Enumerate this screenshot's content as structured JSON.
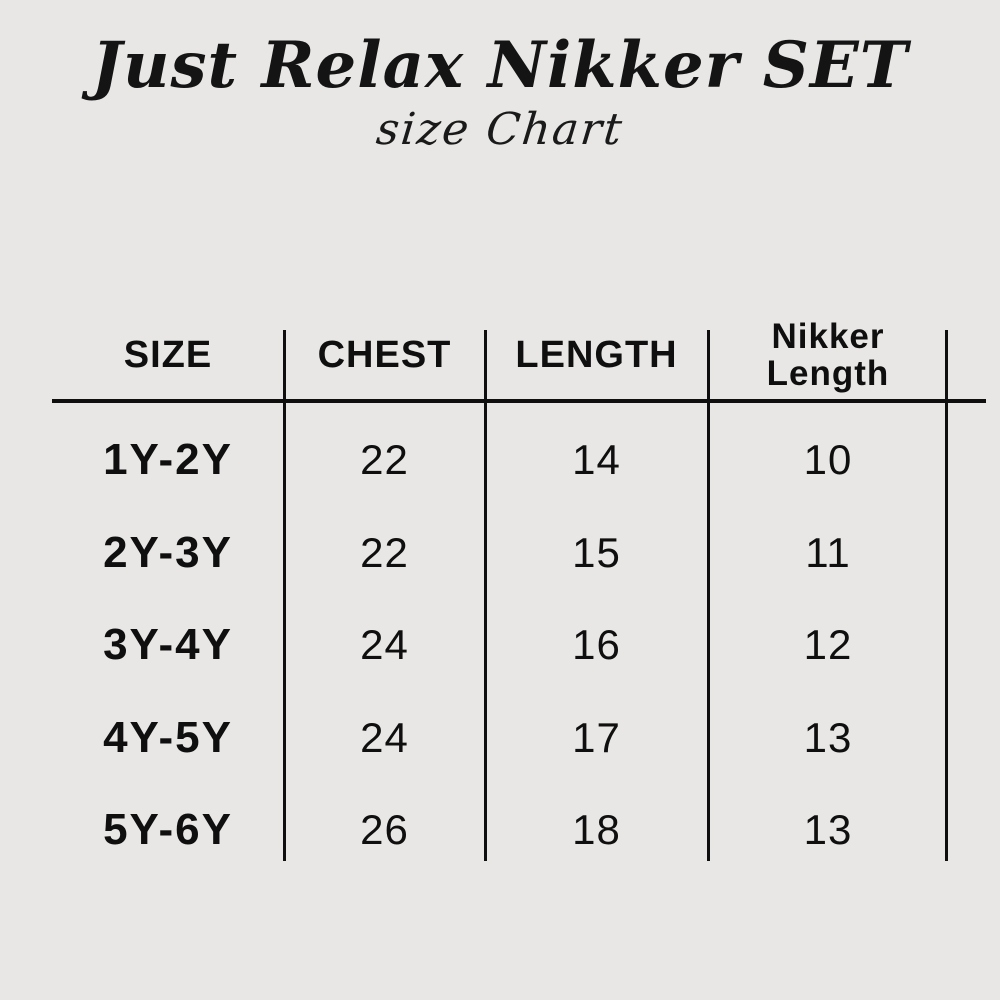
{
  "colors": {
    "background": "#e8e7e5",
    "ink": "#0f0f0f"
  },
  "header": {
    "title": "Just Relax Nikker SET",
    "subtitle": "size Chart"
  },
  "chart_data": {
    "type": "table",
    "title": "Just Relax Nikker SET",
    "subtitle": "size Chart",
    "columns": [
      "SIZE",
      "CHEST",
      "LENGTH",
      "Nikker Length"
    ],
    "rows": [
      [
        "1Y-2Y",
        "22",
        "14",
        "10"
      ],
      [
        "2Y-3Y",
        "22",
        "15",
        "11"
      ],
      [
        "3Y-4Y",
        "24",
        "16",
        "12"
      ],
      [
        "4Y-5Y",
        "24",
        "17",
        "13"
      ],
      [
        "5Y-6Y",
        "26",
        "18",
        "13"
      ]
    ],
    "layout": {
      "grid": "vertical column dividers and single header underline, no outer border",
      "legend": "none"
    }
  }
}
